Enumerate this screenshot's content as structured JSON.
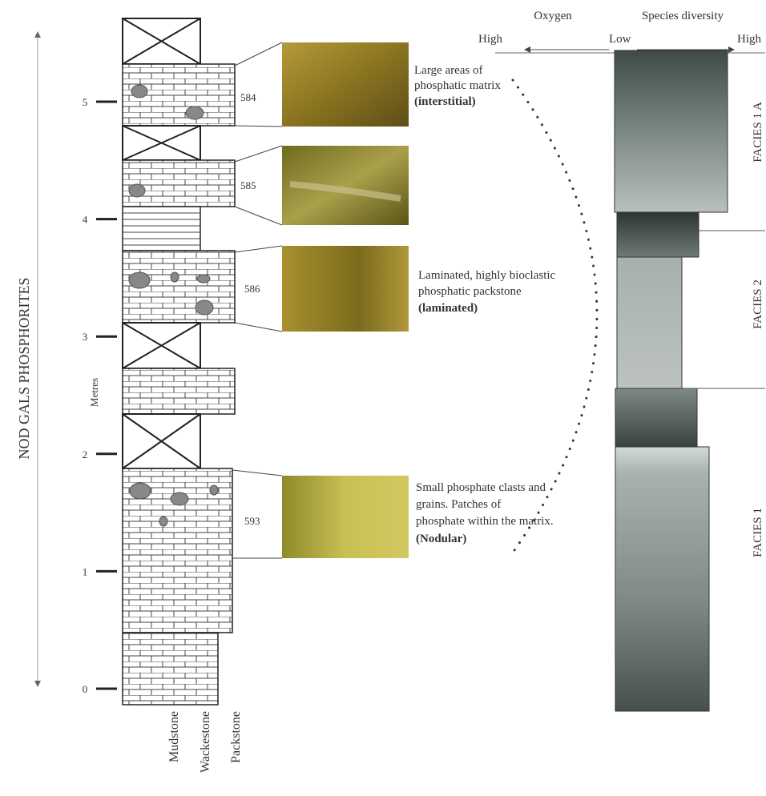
{
  "title": "NOD GALS PHOSPHORITES",
  "scale": {
    "label": "Metres",
    "ticks": [
      "0",
      "1",
      "2",
      "3",
      "4",
      "5"
    ]
  },
  "textures": [
    "Mudstone",
    "Wackestone",
    "Packstone"
  ],
  "samples": [
    {
      "id": "584",
      "description": [
        "Large areas of",
        "phosphatic matrix"
      ],
      "fabric": "(interstitial)"
    },
    {
      "id": "585"
    },
    {
      "id": "586",
      "description": [
        "Laminated, highly bioclastic",
        "phosphatic packstone"
      ],
      "fabric": "(laminated)"
    },
    {
      "id": "593",
      "description": [
        "Small phosphate clasts and",
        "grains. Patches of",
        "phosphate within the matrix."
      ],
      "fabric": "(Nodular)"
    }
  ],
  "gradient": {
    "oxygen": "Oxygen",
    "diversity": "Species diversity",
    "oxygen_high": "High",
    "low": "Low",
    "diversity_high": "High"
  },
  "facies": [
    "FACIES 1 A",
    "FACIES 2",
    "FACIES 1"
  ]
}
